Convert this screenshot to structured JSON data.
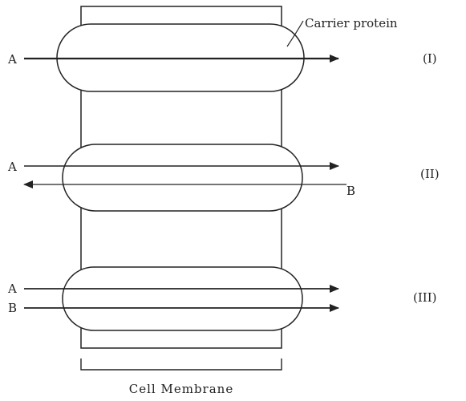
{
  "labels": {
    "carrier_protein": "Carrier protein",
    "cell_membrane": "Cell Membrane"
  },
  "panels": [
    {
      "id": "I",
      "roman": "(I)",
      "arrows": [
        {
          "label": "A",
          "direction": "right"
        }
      ]
    },
    {
      "id": "II",
      "roman": "(II)",
      "arrows": [
        {
          "label": "A",
          "direction": "right"
        },
        {
          "label": "B",
          "direction": "left"
        }
      ]
    },
    {
      "id": "III",
      "roman": "(III)",
      "arrows": [
        {
          "label": "A",
          "direction": "right"
        },
        {
          "label": "B",
          "direction": "right"
        }
      ]
    }
  ],
  "colors": {
    "line": "#222222",
    "background": "#ffffff"
  }
}
